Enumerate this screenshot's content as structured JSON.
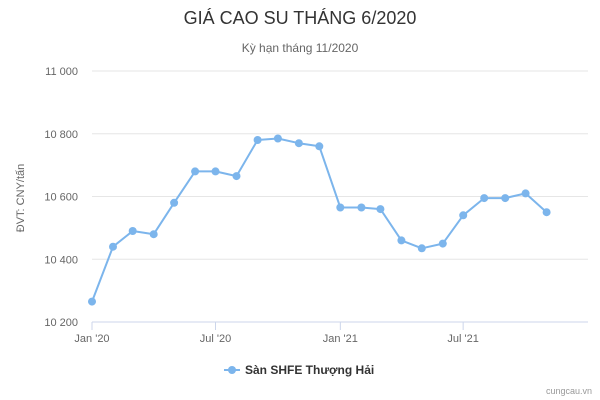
{
  "chart_data": {
    "type": "line",
    "title": "GIÁ CAO SU THÁNG 6/2020",
    "subtitle": "Kỳ hạn tháng 11/2020",
    "ylabel": "ĐVT: CNY/tấn",
    "xlabel": "",
    "ylim": [
      10200,
      11000
    ],
    "y_ticks": [
      10200,
      10400,
      10600,
      10800,
      11000
    ],
    "y_tick_labels": [
      "10 200",
      "10 400",
      "10 600",
      "10 800",
      "11 000"
    ],
    "x_ticks": [
      "2020-01-01",
      "2020-07-01",
      "2021-01-01",
      "2021-07-01"
    ],
    "x_tick_labels": [
      "Jan '20",
      "Jul '20",
      "Jan '21",
      "Jul '21"
    ],
    "xlim": [
      "2020-01-01",
      "2022-01-01"
    ],
    "grid": true,
    "legend": "bottom-center",
    "series": [
      {
        "name": "Sàn SHFE Thượng Hải",
        "color": "#7cb5ec",
        "x": [
          "2020-01-01",
          "2020-02-01",
          "2020-03-01",
          "2020-04-01",
          "2020-05-01",
          "2020-06-01",
          "2020-07-01",
          "2020-08-01",
          "2020-09-01",
          "2020-10-01",
          "2020-11-01",
          "2020-12-01",
          "2021-01-01",
          "2021-02-01",
          "2021-03-01",
          "2021-04-01",
          "2021-05-01",
          "2021-06-01",
          "2021-07-01",
          "2021-08-01",
          "2021-09-01",
          "2021-10-01",
          "2021-11-01"
        ],
        "values": [
          10265,
          10440,
          10490,
          10480,
          10580,
          10680,
          10680,
          10665,
          10780,
          10785,
          10770,
          10760,
          10565,
          10565,
          10560,
          10460,
          10435,
          10450,
          10540,
          10595,
          10595,
          10610,
          10550
        ]
      }
    ]
  },
  "credit": "cungcau.vn"
}
